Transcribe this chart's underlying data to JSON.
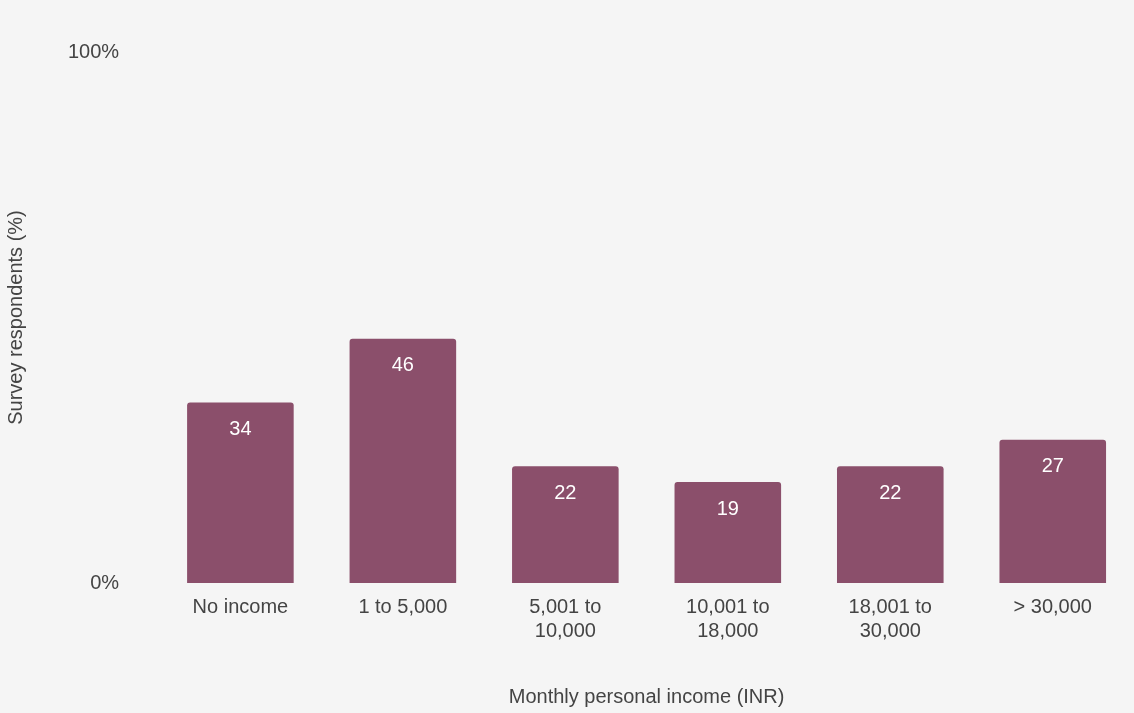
{
  "chart_data": {
    "type": "bar",
    "xlabel": "Monthly personal income (INR)",
    "ylabel": "Survey respondents (%)",
    "categories": [
      "No income",
      "1 to 5,000",
      "5,001 to 10,000",
      "10,001 to 18,000",
      "18,001 to 30,000",
      "> 30,000"
    ],
    "values": [
      34,
      46,
      22,
      19,
      22,
      27
    ],
    "color": "#8b4f6b",
    "ylim": [
      0,
      100
    ],
    "yticks": [
      {
        "value": 0,
        "label": "0%"
      },
      {
        "value": 100,
        "label": "100%"
      }
    ],
    "data_labels": true,
    "grid": false,
    "legend": false
  }
}
